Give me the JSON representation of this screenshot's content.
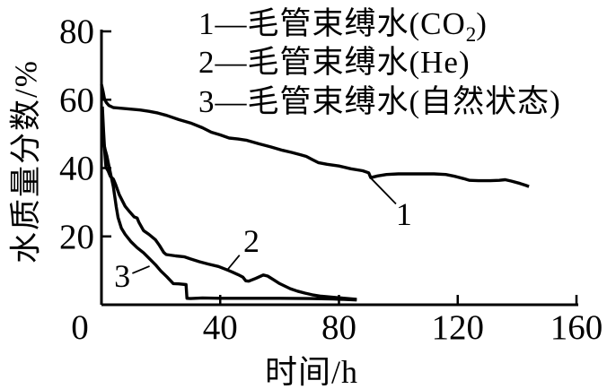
{
  "chart_data": {
    "type": "line",
    "title": "",
    "xlabel": "时间/h",
    "ylabel": "水质量分数/%",
    "xlim": [
      0,
      160
    ],
    "ylim": [
      0,
      80
    ],
    "x_ticks": [
      0,
      40,
      80,
      120,
      160
    ],
    "y_ticks": [
      20,
      40,
      60,
      80
    ],
    "grid": false,
    "legend_position": "top-inside",
    "line_color": "#000000",
    "background": "#ffffff",
    "legend": [
      {
        "pre": "1—毛管束缚水(CO",
        "sub": "2",
        "post": ")"
      },
      {
        "pre": "2—毛管束缚水(He)",
        "sub": "",
        "post": ""
      },
      {
        "pre": "3—毛管束缚水(自然状态)",
        "sub": "",
        "post": ""
      }
    ],
    "series": [
      {
        "name": "毛管束缚水(CO2)",
        "curve_label": "1",
        "points": [
          [
            0,
            64.5
          ],
          [
            0.5,
            62.5
          ],
          [
            1,
            60.3
          ],
          [
            1.6,
            59.2
          ],
          [
            2.5,
            58.3
          ],
          [
            4,
            57.7
          ],
          [
            8,
            57.4
          ],
          [
            13,
            57.0
          ],
          [
            16,
            56.6
          ],
          [
            19,
            56.1
          ],
          [
            22,
            55.4
          ],
          [
            26,
            54.2
          ],
          [
            30,
            53.2
          ],
          [
            34,
            51.8
          ],
          [
            37,
            50.5
          ],
          [
            40,
            49.7
          ],
          [
            43,
            48.8
          ],
          [
            46,
            48.5
          ],
          [
            49,
            48.1
          ],
          [
            53,
            47.1
          ],
          [
            57,
            46.2
          ],
          [
            61,
            45.2
          ],
          [
            64,
            44.6
          ],
          [
            67,
            43.9
          ],
          [
            69,
            43.4
          ],
          [
            71,
            42.5
          ],
          [
            73,
            41.6
          ],
          [
            76,
            41.1
          ],
          [
            80,
            40.6
          ],
          [
            84,
            39.8
          ],
          [
            88,
            39.2
          ],
          [
            90,
            38.6
          ],
          [
            90.7,
            37.2
          ],
          [
            93,
            37.7
          ],
          [
            96,
            38.1
          ],
          [
            100,
            38.3
          ],
          [
            106,
            38.3
          ],
          [
            112,
            38.3
          ],
          [
            116,
            38.1
          ],
          [
            119,
            37.6
          ],
          [
            122,
            36.9
          ],
          [
            124,
            36.4
          ],
          [
            127,
            36.3
          ],
          [
            131,
            36.3
          ],
          [
            134,
            36.4
          ],
          [
            136,
            36.6
          ],
          [
            138,
            36.2
          ],
          [
            141,
            35.5
          ],
          [
            143,
            34.9
          ],
          [
            144,
            34.6
          ]
        ]
      },
      {
        "name": "毛管束缚水(He)",
        "curve_label": "2",
        "points": [
          [
            0.3,
            58
          ],
          [
            0.7,
            51
          ],
          [
            1.1,
            45
          ],
          [
            1.5,
            40.2
          ],
          [
            2.2,
            39.2
          ],
          [
            3,
            37.6
          ],
          [
            4,
            36.8
          ],
          [
            4.8,
            35.1
          ],
          [
            6,
            32.2
          ],
          [
            8,
            28.8
          ],
          [
            9.5,
            27.2
          ],
          [
            11,
            25.7
          ],
          [
            12,
            25.4
          ],
          [
            12.6,
            24.1
          ],
          [
            14.2,
            21.7
          ],
          [
            16,
            20.6
          ],
          [
            18.2,
            19.0
          ],
          [
            19.5,
            17.4
          ],
          [
            21,
            15.3
          ],
          [
            21.8,
            14.7
          ],
          [
            25,
            14.3
          ],
          [
            28,
            14.0
          ],
          [
            30,
            13.4
          ],
          [
            33,
            12.6
          ],
          [
            36,
            11.9
          ],
          [
            39.4,
            11.2
          ],
          [
            42,
            10.3
          ],
          [
            44,
            9.6
          ],
          [
            46,
            8.8
          ],
          [
            47.6,
            8.1
          ],
          [
            48.6,
            7.0
          ],
          [
            49.6,
            6.9
          ],
          [
            52,
            7.7
          ],
          [
            54.5,
            8.7
          ],
          [
            56,
            8.4
          ],
          [
            58,
            7.3
          ],
          [
            60,
            6.2
          ],
          [
            63.6,
            4.7
          ],
          [
            66,
            4.0
          ],
          [
            68.5,
            3.4
          ],
          [
            71,
            2.9
          ],
          [
            74,
            2.5
          ],
          [
            79,
            2.1
          ],
          [
            82,
            1.9
          ],
          [
            86,
            1.6
          ]
        ]
      },
      {
        "name": "毛管束缚水(自然状态)",
        "curve_label": "3",
        "points": [
          [
            0.2,
            56
          ],
          [
            0.35,
            50
          ],
          [
            0.8,
            47.2
          ],
          [
            1.3,
            45.2
          ],
          [
            1.8,
            43.6
          ],
          [
            2.5,
            40.6
          ],
          [
            3.3,
            37.4
          ],
          [
            4,
            34.6
          ],
          [
            4.5,
            31.5
          ],
          [
            5,
            28.6
          ],
          [
            5.6,
            25.5
          ],
          [
            6.7,
            22.4
          ],
          [
            8,
            20.6
          ],
          [
            10,
            18.4
          ],
          [
            12,
            16.7
          ],
          [
            14.2,
            15.2
          ],
          [
            16,
            13.6
          ],
          [
            18.2,
            11.7
          ],
          [
            20,
            9.9
          ],
          [
            22,
            8.2
          ],
          [
            24.2,
            6.2
          ],
          [
            26,
            6.1
          ],
          [
            28.5,
            5.9
          ],
          [
            28.8,
            1.9
          ],
          [
            30,
            1.8
          ],
          [
            34,
            2.0
          ],
          [
            40,
            1.9
          ],
          [
            50,
            1.9
          ],
          [
            60,
            1.9
          ],
          [
            70,
            1.8
          ],
          [
            78,
            1.7
          ],
          [
            86,
            1.4
          ]
        ]
      }
    ],
    "annotations": [
      {
        "text": "1",
        "x": 101.9,
        "y": 26.8,
        "leader": [
          [
            90.8,
            37.0
          ],
          [
            99.2,
            29.5
          ]
        ]
      },
      {
        "text": "2",
        "x": 50.5,
        "y": 18.9,
        "leader": [
          [
            42.4,
            10.2
          ],
          [
            46.5,
            14.5
          ]
        ]
      },
      {
        "text": "3",
        "x": 7.0,
        "y": 8.6,
        "leader": [
          [
            10.4,
            9.2
          ],
          [
            16.2,
            11.3
          ]
        ]
      }
    ]
  }
}
